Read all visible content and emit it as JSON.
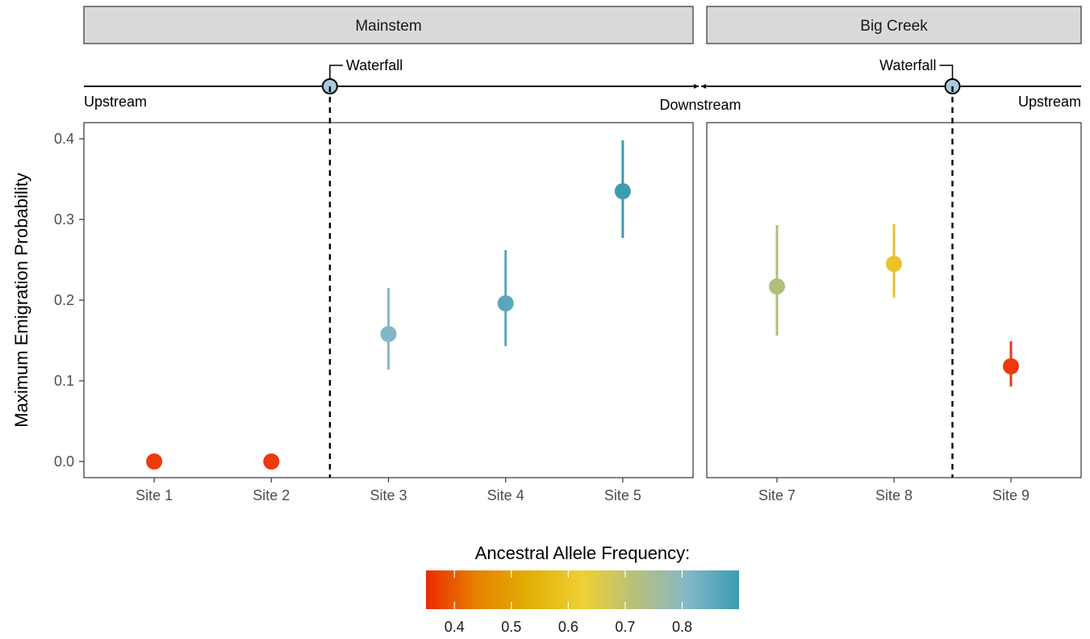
{
  "chart_data": {
    "type": "scatter",
    "ylabel": "Maximum Emigration Probability",
    "ylim": [
      -0.02,
      0.42
    ],
    "yticks": [
      0.0,
      0.1,
      0.2,
      0.3,
      0.4
    ],
    "ytick_labels": [
      "0.0",
      "0.1",
      "0.2",
      "0.3",
      "0.4"
    ],
    "grid": false,
    "annotations": {
      "upstream_left": "Upstream",
      "downstream": "Downstream",
      "upstream_right": "Upstream",
      "waterfall_left": "Waterfall",
      "waterfall_right": "Waterfall"
    },
    "panels": [
      {
        "name": "Mainstem",
        "categories": [
          "Site 1",
          "Site 2",
          "Site 3",
          "Site 4",
          "Site 5"
        ],
        "waterfall_after_index": 1,
        "points": [
          {
            "site": "Site 1",
            "y": 0.0,
            "low": null,
            "high": null,
            "color": "#ee3a0c"
          },
          {
            "site": "Site 2",
            "y": 0.0,
            "low": null,
            "high": null,
            "color": "#ee3a0c"
          },
          {
            "site": "Site 3",
            "y": 0.158,
            "low": 0.114,
            "high": 0.215,
            "color": "#82b8c6"
          },
          {
            "site": "Site 4",
            "y": 0.196,
            "low": 0.143,
            "high": 0.262,
            "color": "#5ba7bb"
          },
          {
            "site": "Site 5",
            "y": 0.335,
            "low": 0.277,
            "high": 0.398,
            "color": "#3b9cb1"
          }
        ]
      },
      {
        "name": "Big Creek",
        "categories": [
          "Site 7",
          "Site 8",
          "Site 9"
        ],
        "waterfall_after_index": 1,
        "points": [
          {
            "site": "Site 7",
            "y": 0.217,
            "low": 0.156,
            "high": 0.293,
            "color": "#afbf7c"
          },
          {
            "site": "Site 8",
            "y": 0.245,
            "low": 0.203,
            "high": 0.294,
            "color": "#e9c32a"
          },
          {
            "site": "Site 9",
            "y": 0.118,
            "low": 0.093,
            "high": 0.149,
            "color": "#ee3a0c"
          }
        ]
      }
    ],
    "legend": {
      "title": "Ancestral Allele Frequency:",
      "placement": "bottom",
      "range": [
        0.35,
        0.9
      ],
      "ticks": [
        0.4,
        0.5,
        0.6,
        0.7,
        0.8
      ],
      "tick_labels": [
        "0.4",
        "0.5",
        "0.6",
        "0.7",
        "0.8"
      ],
      "colors": [
        "#ee2a00",
        "#e58400",
        "#e2af05",
        "#edd033",
        "#b8c07a",
        "#84b8c8",
        "#3b9cb1"
      ]
    }
  }
}
